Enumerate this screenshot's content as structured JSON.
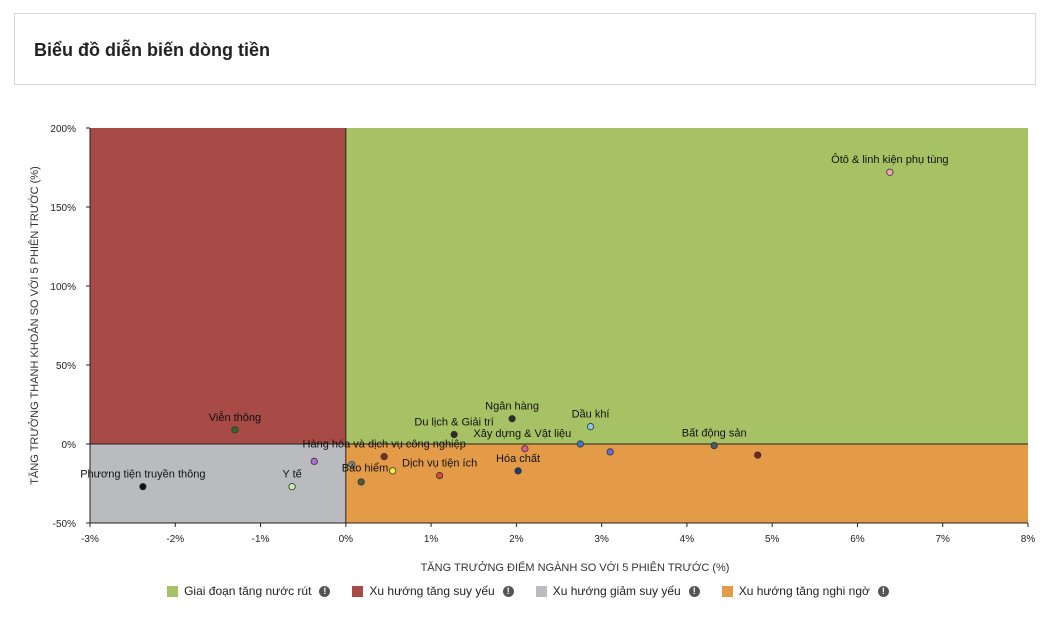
{
  "page": {
    "title": "Biểu đồ diễn biến dòng tiền"
  },
  "legend": [
    {
      "label": "Giai đoạn tăng nước rút",
      "color": "#a6c264",
      "icon": "info-icon"
    },
    {
      "label": "Xu hướng tăng suy yếu",
      "color": "#a84a45",
      "icon": "info-icon"
    },
    {
      "label": "Xu hướng giảm suy yếu",
      "color": "#babbbf",
      "icon": "info-icon"
    },
    {
      "label": "Xu hướng tăng nghi ngờ",
      "color": "#e39b47",
      "icon": "info-icon"
    }
  ],
  "chart_data": {
    "type": "scatter",
    "title": "",
    "xlabel": "TĂNG TRƯỞNG ĐIỂM NGÀNH SO VỚI 5 PHIÊN TRƯỚC (%)",
    "ylabel": "TĂNG TRƯỞNG THANH KHOẢN SO VỚI 5 PHIÊN TRƯỚC (%)",
    "xlim": [
      -3,
      8
    ],
    "ylim": [
      -50,
      200
    ],
    "x_ticks": [
      -3,
      -2,
      -1,
      0,
      1,
      2,
      3,
      4,
      5,
      6,
      7,
      8
    ],
    "x_tick_labels": [
      "-3%",
      "-2%",
      "-1%",
      "0%",
      "1%",
      "2%",
      "3%",
      "4%",
      "5%",
      "6%",
      "7%",
      "8%"
    ],
    "y_ticks": [
      -50,
      0,
      50,
      100,
      150,
      200
    ],
    "y_tick_labels": [
      "-50%",
      "0%",
      "50%",
      "100%",
      "150%",
      "200%"
    ],
    "quadrants": {
      "top_right": "#a6c264",
      "top_left": "#a84a45",
      "bottom_left": "#babbbf",
      "bottom_right": "#e39b47"
    },
    "points": [
      {
        "label": "Ôtô & linh kiện phụ tùng",
        "x": 6.38,
        "y": 172,
        "color": "#f2a7b5",
        "label_pos": "above"
      },
      {
        "label": "Viễn thông",
        "x": -1.3,
        "y": 9,
        "color": "#2f6b2a",
        "label_pos": "above"
      },
      {
        "label": "Ngân hàng",
        "x": 1.95,
        "y": 16,
        "color": "#2b2b2b",
        "label_pos": "above"
      },
      {
        "label": "Du lịch & Giải trí",
        "x": 1.27,
        "y": 6,
        "color": "#2b2b2b",
        "label_pos": "above"
      },
      {
        "label": "Dầu khí",
        "x": 2.87,
        "y": 11,
        "color": "#86c7f2",
        "label_pos": "above"
      },
      {
        "label": "Xây dựng & Vật liệu",
        "x": 2.75,
        "y": 0,
        "color": "#3a78c9",
        "label_pos": "above-left"
      },
      {
        "label": "Bất động sản",
        "x": 4.32,
        "y": -1,
        "color": "#4a5a66",
        "label_pos": "above"
      },
      {
        "label": "Hàng hóa và dịch vụ công nghiệp",
        "x": 0.45,
        "y": -8,
        "color": "#7a2a2a",
        "label_pos": "above"
      },
      {
        "label": "Hóa chất",
        "x": 2.02,
        "y": -17,
        "color": "#1f3a7a",
        "label_pos": "above"
      },
      {
        "label": "Dịch vụ tiện ích",
        "x": 1.1,
        "y": -20,
        "color": "#d84a3a",
        "label_pos": "above"
      },
      {
        "label": "Bảo hiểm",
        "x": 0.07,
        "y": -13,
        "color": "#7fa0a8",
        "label_pos": "right"
      },
      {
        "label": "Y tế",
        "x": -0.63,
        "y": -27,
        "color": "#c7efb0",
        "label_pos": "above"
      },
      {
        "label": "Phương tiện truyền thông",
        "x": -2.38,
        "y": -27,
        "color": "#111111",
        "label_pos": "above"
      },
      {
        "label": "",
        "x": -0.37,
        "y": -11,
        "color": "#b26ad6"
      },
      {
        "label": "",
        "x": 0.55,
        "y": -17,
        "color": "#f2ea4a"
      },
      {
        "label": "",
        "x": 0.18,
        "y": -24,
        "color": "#4e5a38"
      },
      {
        "label": "",
        "x": 2.1,
        "y": -3,
        "color": "#e05a8a"
      },
      {
        "label": "",
        "x": 3.1,
        "y": -5,
        "color": "#6a6ad6"
      },
      {
        "label": "",
        "x": 4.83,
        "y": -7,
        "color": "#7a2020"
      }
    ]
  }
}
